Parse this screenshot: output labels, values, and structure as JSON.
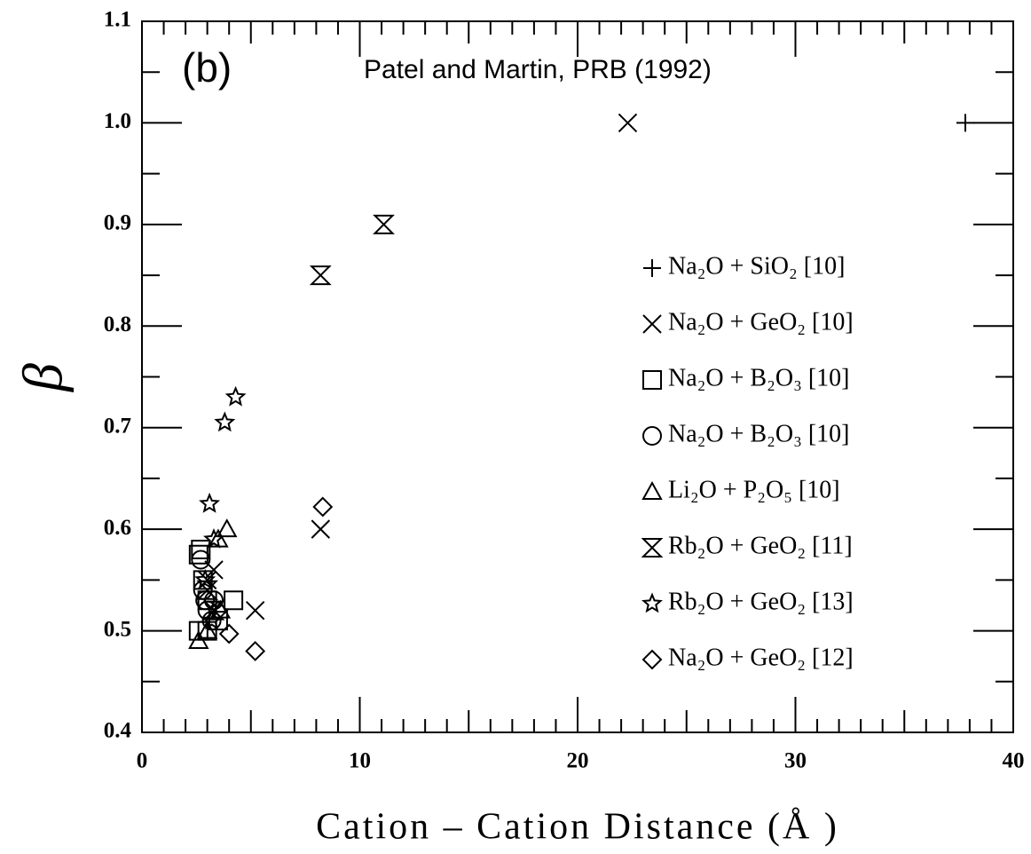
{
  "chart_data": {
    "type": "scatter",
    "panel_label": "(b)",
    "annotation": "Patel and Martin, PRB (1992)",
    "x_label": "Cation – Cation Distance (Å )",
    "y_label": "β",
    "xlim": [
      0,
      40
    ],
    "xticks": [
      0,
      10,
      20,
      30,
      40
    ],
    "ylim": [
      0.4,
      1.1
    ],
    "yticks": [
      0.4,
      0.5,
      0.6,
      0.7,
      0.8,
      0.9,
      {
        "value": 1,
        "label": "1.0"
      },
      1.1
    ],
    "legend": "right",
    "series": [
      {
        "name": "Na₂O + SiO₂ [10]",
        "marker": "plus",
        "color": "#000000",
        "x": [
          37.8
        ],
        "values": [
          1.0
        ]
      },
      {
        "name": "Na₂O + GeO₂ [10]",
        "marker": "x",
        "color": "#000000",
        "x": [
          22.3,
          8.2,
          5.2,
          3.3,
          3.0
        ],
        "values": [
          1.0,
          0.6,
          0.52,
          0.56,
          0.55
        ]
      },
      {
        "name": "Na₂O + B₂O₃ [10]",
        "marker": "square",
        "color": "#000000",
        "x": [
          2.6,
          2.7,
          2.6,
          3.0,
          3.5,
          4.2,
          3.0,
          2.8
        ],
        "values": [
          0.575,
          0.58,
          0.5,
          0.53,
          0.51,
          0.53,
          0.5,
          0.55
        ]
      },
      {
        "name": "Na₂O + B₂O₃ [10]",
        "marker": "circle",
        "color": "#000000",
        "x": [
          2.8,
          3.0,
          3.2,
          2.9,
          3.3,
          2.7
        ],
        "values": [
          0.54,
          0.52,
          0.51,
          0.53,
          0.53,
          0.57
        ]
      },
      {
        "name": "Li₂O + P₂O₅ [10]",
        "marker": "triangle",
        "color": "#000000",
        "x": [
          2.6,
          3.5,
          3.9,
          3.0,
          3.6
        ],
        "values": [
          0.49,
          0.59,
          0.6,
          0.5,
          0.52
        ]
      },
      {
        "name": "Rb₂O + GeO₂ [11]",
        "marker": "hourglass",
        "color": "#000000",
        "x": [
          8.2,
          11.1,
          3.0,
          3.3
        ],
        "values": [
          0.85,
          0.9,
          0.54,
          0.52
        ]
      },
      {
        "name": "Rb₂O + GeO₂ [13]",
        "marker": "star",
        "color": "#000000",
        "x": [
          4.3,
          3.8,
          3.1,
          3.3,
          2.9,
          3.2
        ],
        "values": [
          0.73,
          0.705,
          0.625,
          0.59,
          0.55,
          0.51
        ]
      },
      {
        "name": "Na₂O + GeO₂ [12]",
        "marker": "diamond",
        "color": "#000000",
        "x": [
          8.3,
          5.2,
          4.0,
          3.5
        ],
        "values": [
          0.622,
          0.48,
          0.497,
          0.52
        ]
      }
    ]
  }
}
